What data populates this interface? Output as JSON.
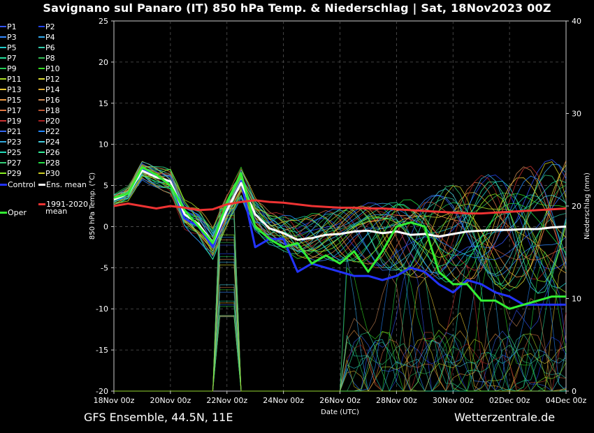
{
  "header": {
    "title": "Savignano sul Panaro  (IT)  850 hPa Temp. & Niederschlag | Sat, 18Nov2023 00Z"
  },
  "footer": {
    "left": "GFS Ensemble, 44.5N, 11E",
    "right": "Wetterzentrale.de"
  },
  "legend": {
    "members": [
      {
        "label": "P1",
        "color": "#3355ff"
      },
      {
        "label": "P2",
        "color": "#2244ee"
      },
      {
        "label": "P3",
        "color": "#3388ff"
      },
      {
        "label": "P4",
        "color": "#33aaee"
      },
      {
        "label": "P5",
        "color": "#22cccc"
      },
      {
        "label": "P6",
        "color": "#33ccaa"
      },
      {
        "label": "P7",
        "color": "#22dd99"
      },
      {
        "label": "P8",
        "color": "#33bb55"
      },
      {
        "label": "P9",
        "color": "#22cc55"
      },
      {
        "label": "P10",
        "color": "#33dd22"
      },
      {
        "label": "P11",
        "color": "#aadd22"
      },
      {
        "label": "P12",
        "color": "#dddd33"
      },
      {
        "label": "P13",
        "color": "#eecc33"
      },
      {
        "label": "P14",
        "color": "#ddaa33"
      },
      {
        "label": "P15",
        "color": "#ee9944"
      },
      {
        "label": "P16",
        "color": "#cc8855"
      },
      {
        "label": "P17",
        "color": "#dd7744"
      },
      {
        "label": "P18",
        "color": "#bb5533"
      },
      {
        "label": "P19",
        "color": "#cc3333"
      },
      {
        "label": "P20",
        "color": "#aa2222"
      },
      {
        "label": "P21",
        "color": "#3366ee"
      },
      {
        "label": "P22",
        "color": "#2288ff"
      },
      {
        "label": "P23",
        "color": "#33aadd"
      },
      {
        "label": "P24",
        "color": "#44ccdd"
      },
      {
        "label": "P25",
        "color": "#22ddbb"
      },
      {
        "label": "P26",
        "color": "#33ee99"
      },
      {
        "label": "P27",
        "color": "#33cc77"
      },
      {
        "label": "P28",
        "color": "#22dd44"
      },
      {
        "label": "P29",
        "color": "#88ee22"
      },
      {
        "label": "P30",
        "color": "#cccc22"
      }
    ],
    "control": {
      "label": "Control",
      "color": "#2233ff"
    },
    "ens_mean": {
      "label": "Ens. mean",
      "color": "#ffffff"
    },
    "oper": {
      "label": "Oper",
      "color": "#33ee33"
    },
    "climate": {
      "label_line1": "1991-2020",
      "label_line2": "mean",
      "color": "#ee3333"
    }
  },
  "chart_data": {
    "type": "line",
    "title": "Savignano sul Panaro  (IT)  850 hPa Temp. & Niederschlag | Sat, 18Nov2023 00Z",
    "xlabel": "Date (UTC)",
    "ylabel": "850 hPa Temp. (°C)",
    "y2label": "Niederschlag (mm)",
    "ylim": [
      -20,
      25
    ],
    "y2lim": [
      0,
      40
    ],
    "yticks": [
      "-20",
      "-15",
      "-10",
      "-5",
      "0",
      "5",
      "10",
      "15",
      "20",
      "25"
    ],
    "y2ticks": [
      "0",
      "10",
      "20",
      "30",
      "40"
    ],
    "x_tick_labels": [
      "18Nov 00z",
      "20Nov 00z",
      "22Nov 00z",
      "24Nov 00z",
      "26Nov 00z",
      "28Nov 00z",
      "30Nov 00z",
      "02Dec 00z",
      "04Dec 00z"
    ],
    "x_start": "18Nov 00z",
    "x_end": "04Dec 00z",
    "grid": true,
    "series": [
      {
        "name": "Control",
        "color": "#2233ff",
        "x": [
          0,
          0.5,
          1,
          1.5,
          2,
          2.5,
          3,
          3.5,
          4,
          4.5,
          5,
          5.5,
          6,
          6.5,
          7,
          7.5,
          8,
          8.5,
          9,
          9.5,
          10,
          10.5,
          11,
          11.5,
          12,
          12.5,
          13,
          13.5,
          14,
          14.5,
          15,
          15.5,
          16
        ],
        "values": [
          3.5,
          4,
          7,
          6,
          5.5,
          1,
          0,
          -2.5,
          2,
          5.5,
          -2.5,
          -1.5,
          -1.5,
          -5.5,
          -4.5,
          -5,
          -5.5,
          -6,
          -6,
          -6.5,
          -6,
          -5,
          -5.5,
          -7,
          -8,
          -6.5,
          -7,
          -8,
          -8.5,
          -9.5,
          -9.5,
          -9.5,
          -9.5
        ]
      },
      {
        "name": "Ens. mean",
        "color": "#ffffff",
        "x": [
          0,
          0.5,
          1,
          1.5,
          2,
          2.5,
          3,
          3.5,
          4,
          4.5,
          5,
          5.5,
          6,
          6.5,
          7,
          7.5,
          8,
          8.5,
          9,
          9.5,
          10,
          10.5,
          11,
          11.5,
          12,
          12.5,
          13,
          13.5,
          14,
          14.5,
          15,
          15.5,
          16
        ],
        "values": [
          3.3,
          4,
          6.8,
          6,
          5.5,
          1.5,
          0.3,
          -2,
          2,
          5.3,
          1.5,
          -0.2,
          -0.8,
          -1.6,
          -1.4,
          -1,
          -0.9,
          -0.6,
          -0.5,
          -0.8,
          -0.6,
          -1,
          -0.9,
          -1.2,
          -0.9,
          -0.6,
          -0.5,
          -0.4,
          -0.4,
          -0.3,
          -0.3,
          -0.1,
          0
        ]
      },
      {
        "name": "Oper",
        "color": "#33ee33",
        "x": [
          0,
          0.5,
          1,
          1.5,
          2,
          2.5,
          3,
          3.5,
          4,
          4.5,
          5,
          5.5,
          6,
          6.5,
          7,
          7.5,
          8,
          8.5,
          9,
          9.5,
          10,
          10.5,
          11,
          11.5,
          12,
          12.5,
          13,
          13.5,
          14,
          14.5,
          15,
          15.5,
          16
        ],
        "values": [
          3.5,
          4,
          7.2,
          6.3,
          5,
          2,
          0,
          -2,
          3,
          6.5,
          0,
          -1.5,
          -2.5,
          -2,
          -4.5,
          -3.5,
          -4.5,
          -3,
          -5.5,
          -3,
          0,
          0.5,
          0,
          -5.5,
          -7,
          -7,
          -9,
          -9,
          -10,
          -9.5,
          -9,
          -8.5,
          -8.5
        ]
      },
      {
        "name": "1991-2020 mean",
        "color": "#ee3333",
        "x": [
          0,
          0.5,
          1,
          1.5,
          2,
          2.5,
          3,
          3.5,
          4,
          4.5,
          5,
          5.5,
          6,
          6.5,
          7,
          7.5,
          8,
          8.5,
          9,
          9.5,
          10,
          10.5,
          11,
          11.5,
          12,
          12.5,
          13,
          13.5,
          14,
          14.5,
          15,
          15.5,
          16
        ],
        "values": [
          2.5,
          2.8,
          2.5,
          2.2,
          2.5,
          2.3,
          2,
          2.1,
          2.7,
          3,
          3.2,
          3,
          2.9,
          2.7,
          2.5,
          2.4,
          2.3,
          2.3,
          2.2,
          2.2,
          2.1,
          2,
          1.9,
          1.8,
          1.7,
          1.6,
          1.6,
          1.7,
          1.8,
          1.9,
          2,
          2.1,
          2.2
        ]
      }
    ]
  }
}
